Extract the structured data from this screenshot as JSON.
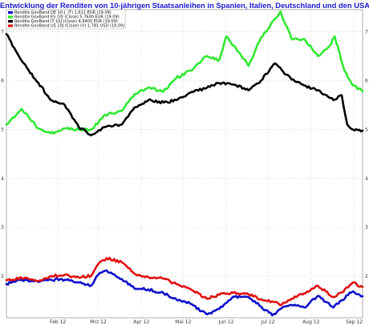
{
  "chart_data": {
    "type": "line",
    "title": "Entwicklung der Renditen von 10-jährigen Staatsanleihen in Spanien, Italien, Deutschland und den USA",
    "xlabel": "",
    "ylabel": "",
    "x_domain": [
      "2012-01-09",
      "2012-09-21"
    ],
    "ylim": [
      1.15,
      7.45
    ],
    "y_ticks": [
      2,
      3,
      4,
      5,
      6,
      7
    ],
    "x_ticks": [
      {
        "label": "Feb 12",
        "date": "2012-02-15"
      },
      {
        "label": "Mrz 12",
        "date": "2012-03-15"
      },
      {
        "label": "Apr 12",
        "date": "2012-04-15"
      },
      {
        "label": "Mai 12",
        "date": "2012-05-15"
      },
      {
        "label": "Jun 12",
        "date": "2012-06-15"
      },
      {
        "label": "Jul 12",
        "date": "2012-07-15"
      },
      {
        "label": "Aug 12",
        "date": "2012-08-15"
      },
      {
        "label": "Sep 12",
        "date": "2012-09-15"
      }
    ],
    "grid": true,
    "legend_position": "top-left",
    "series": [
      {
        "name": "Rendite GovBand DE 10 J. (T) 1,611 EUR (19.09)",
        "color": "#1010cc",
        "values": [
          [
            "2012-01-09",
            1.84
          ],
          [
            "2012-01-20",
            1.93
          ],
          [
            "2012-02-01",
            1.88
          ],
          [
            "2012-02-10",
            1.93
          ],
          [
            "2012-02-20",
            1.93
          ],
          [
            "2012-03-01",
            1.87
          ],
          [
            "2012-03-10",
            1.81
          ],
          [
            "2012-03-15",
            2.03
          ],
          [
            "2012-03-21",
            2.12
          ],
          [
            "2012-04-01",
            1.94
          ],
          [
            "2012-04-10",
            1.75
          ],
          [
            "2012-04-20",
            1.73
          ],
          [
            "2012-05-01",
            1.65
          ],
          [
            "2012-05-10",
            1.53
          ],
          [
            "2012-05-20",
            1.44
          ],
          [
            "2012-06-01",
            1.22
          ],
          [
            "2012-06-10",
            1.33
          ],
          [
            "2012-06-20",
            1.58
          ],
          [
            "2012-07-01",
            1.57
          ],
          [
            "2012-07-10",
            1.38
          ],
          [
            "2012-07-18",
            1.2
          ],
          [
            "2012-07-25",
            1.35
          ],
          [
            "2012-08-01",
            1.41
          ],
          [
            "2012-08-10",
            1.36
          ],
          [
            "2012-08-20",
            1.6
          ],
          [
            "2012-08-31",
            1.36
          ],
          [
            "2012-09-06",
            1.51
          ],
          [
            "2012-09-14",
            1.69
          ],
          [
            "2012-09-21",
            1.59
          ]
        ]
      },
      {
        "name": "Rendite GovBand ES 10J (Close) 5,7600 EUR (19.09)",
        "color": "#30e830",
        "values": [
          [
            "2012-01-09",
            5.1
          ],
          [
            "2012-01-20",
            5.42
          ],
          [
            "2012-02-01",
            5.02
          ],
          [
            "2012-02-10",
            4.92
          ],
          [
            "2012-02-20",
            5.02
          ],
          [
            "2012-03-01",
            5.0
          ],
          [
            "2012-03-10",
            5.0
          ],
          [
            "2012-03-20",
            5.3
          ],
          [
            "2012-04-01",
            5.38
          ],
          [
            "2012-04-10",
            5.72
          ],
          [
            "2012-04-20",
            5.86
          ],
          [
            "2012-05-01",
            5.78
          ],
          [
            "2012-05-10",
            6.05
          ],
          [
            "2012-05-20",
            6.2
          ],
          [
            "2012-06-01",
            6.5
          ],
          [
            "2012-06-10",
            6.42
          ],
          [
            "2012-06-15",
            6.9
          ],
          [
            "2012-06-25",
            6.55
          ],
          [
            "2012-07-01",
            6.3
          ],
          [
            "2012-07-10",
            6.88
          ],
          [
            "2012-07-15",
            7.05
          ],
          [
            "2012-07-24",
            7.41
          ],
          [
            "2012-08-01",
            6.85
          ],
          [
            "2012-08-10",
            6.85
          ],
          [
            "2012-08-20",
            6.5
          ],
          [
            "2012-08-28",
            6.7
          ],
          [
            "2012-09-01",
            6.9
          ],
          [
            "2012-09-08",
            6.2
          ],
          [
            "2012-09-14",
            5.9
          ],
          [
            "2012-09-21",
            5.78
          ]
        ]
      },
      {
        "name": "Rendite GovBand IT 10J (Close) 4,9400 EUR (19.09)",
        "color": "#000000",
        "values": [
          [
            "2012-01-09",
            6.95
          ],
          [
            "2012-01-20",
            6.4
          ],
          [
            "2012-02-01",
            5.95
          ],
          [
            "2012-02-10",
            5.6
          ],
          [
            "2012-02-20",
            5.5
          ],
          [
            "2012-03-01",
            5.05
          ],
          [
            "2012-03-10",
            4.88
          ],
          [
            "2012-03-20",
            5.05
          ],
          [
            "2012-04-01",
            5.1
          ],
          [
            "2012-04-10",
            5.45
          ],
          [
            "2012-04-20",
            5.6
          ],
          [
            "2012-05-01",
            5.55
          ],
          [
            "2012-05-10",
            5.6
          ],
          [
            "2012-05-20",
            5.75
          ],
          [
            "2012-06-01",
            5.85
          ],
          [
            "2012-06-10",
            5.95
          ],
          [
            "2012-06-20",
            5.92
          ],
          [
            "2012-07-01",
            5.8
          ],
          [
            "2012-07-10",
            6.0
          ],
          [
            "2012-07-20",
            6.35
          ],
          [
            "2012-08-01",
            6.02
          ],
          [
            "2012-08-10",
            5.9
          ],
          [
            "2012-08-20",
            5.8
          ],
          [
            "2012-08-31",
            5.6
          ],
          [
            "2012-09-06",
            5.7
          ],
          [
            "2012-09-10",
            5.1
          ],
          [
            "2012-09-14",
            5.0
          ],
          [
            "2012-09-21",
            4.98
          ]
        ]
      },
      {
        "name": "Rendite GovBand US 10J (Close) (V) 1,781 USD (19.09)",
        "color": "#e01010",
        "values": [
          [
            "2012-01-09",
            1.92
          ],
          [
            "2012-01-20",
            1.96
          ],
          [
            "2012-02-01",
            1.9
          ],
          [
            "2012-02-10",
            2.0
          ],
          [
            "2012-02-20",
            2.03
          ],
          [
            "2012-03-01",
            1.97
          ],
          [
            "2012-03-10",
            2.01
          ],
          [
            "2012-03-15",
            2.25
          ],
          [
            "2012-03-21",
            2.37
          ],
          [
            "2012-04-01",
            2.28
          ],
          [
            "2012-04-10",
            2.05
          ],
          [
            "2012-04-20",
            1.98
          ],
          [
            "2012-05-01",
            1.95
          ],
          [
            "2012-05-10",
            1.84
          ],
          [
            "2012-05-20",
            1.74
          ],
          [
            "2012-06-01",
            1.54
          ],
          [
            "2012-06-10",
            1.62
          ],
          [
            "2012-06-20",
            1.66
          ],
          [
            "2012-07-01",
            1.63
          ],
          [
            "2012-07-10",
            1.53
          ],
          [
            "2012-07-20",
            1.47
          ],
          [
            "2012-07-25",
            1.42
          ],
          [
            "2012-08-01",
            1.54
          ],
          [
            "2012-08-10",
            1.65
          ],
          [
            "2012-08-20",
            1.8
          ],
          [
            "2012-08-31",
            1.57
          ],
          [
            "2012-09-06",
            1.67
          ],
          [
            "2012-09-14",
            1.87
          ],
          [
            "2012-09-21",
            1.78
          ]
        ]
      }
    ]
  }
}
